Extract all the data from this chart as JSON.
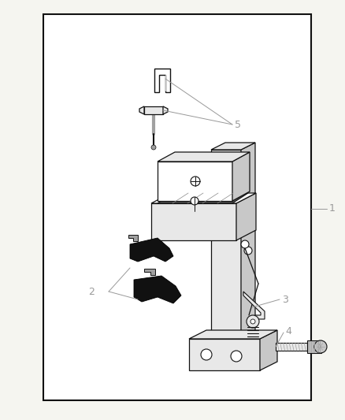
{
  "figsize": [
    4.38,
    5.33
  ],
  "dpi": 100,
  "bg": "#f5f5f0",
  "white": "#ffffff",
  "black": "#111111",
  "dark": "#1a1a1a",
  "gray_light": "#e8e8e8",
  "gray_mid": "#c8c8c8",
  "gray_dark": "#a0a0a0",
  "label_color": "#888888",
  "border_lw": 1.5,
  "leader_lw": 0.7,
  "part_lw": 0.9
}
